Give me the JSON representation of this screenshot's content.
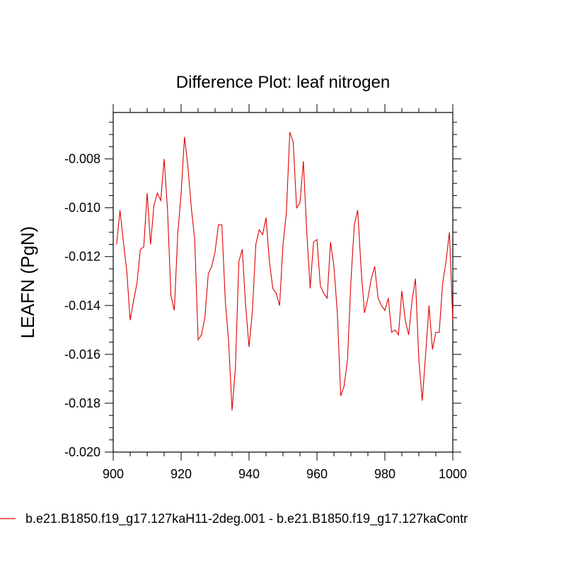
{
  "chart_data": {
    "type": "line",
    "title": "Difference Plot: leaf nitrogen",
    "xlabel": "",
    "ylabel": "LEAFN  (PgN)",
    "xlim": [
      900,
      1000
    ],
    "ylim": [
      -0.02,
      -0.0061
    ],
    "x_ticks": [
      900,
      920,
      940,
      960,
      980,
      1000
    ],
    "x_tick_labels": [
      "900",
      "920",
      "940",
      "960",
      "980",
      "1000"
    ],
    "y_ticks": [
      -0.02,
      -0.018,
      -0.016,
      -0.014,
      -0.012,
      -0.01,
      -0.008
    ],
    "y_tick_labels": [
      "-0.020",
      "-0.018",
      "-0.016",
      "-0.014",
      "-0.012",
      "-0.010",
      "-0.008"
    ],
    "grid": false,
    "legend_position": "bottom",
    "series": [
      {
        "name": "b.e21.B1850.f19_g17.127kaH11-2deg.001 - b.e21.B1850.f19_g17.127kaContr",
        "color": "#e00000",
        "x": [
          901,
          902,
          903,
          904,
          905,
          906,
          907,
          908,
          909,
          910,
          911,
          912,
          913,
          914,
          915,
          916,
          917,
          918,
          919,
          920,
          921,
          922,
          923,
          924,
          925,
          926,
          927,
          928,
          929,
          930,
          931,
          932,
          933,
          934,
          935,
          936,
          937,
          938,
          939,
          940,
          941,
          942,
          943,
          944,
          945,
          946,
          947,
          948,
          949,
          950,
          951,
          952,
          953,
          954,
          955,
          956,
          957,
          958,
          959,
          960,
          961,
          962,
          963,
          964,
          965,
          966,
          967,
          968,
          969,
          970,
          971,
          972,
          973,
          974,
          975,
          976,
          977,
          978,
          979,
          980,
          981,
          982,
          983,
          984,
          985,
          986,
          987,
          988,
          989,
          990,
          991,
          992,
          993,
          994,
          995,
          996,
          997,
          998,
          999,
          1000
        ],
        "values": [
          -0.0115,
          -0.0101,
          -0.0114,
          -0.0126,
          -0.0146,
          -0.0138,
          -0.0131,
          -0.0117,
          -0.0116,
          -0.0094,
          -0.0115,
          -0.0099,
          -0.0094,
          -0.0097,
          -0.008,
          -0.0101,
          -0.0136,
          -0.0142,
          -0.0111,
          -0.0094,
          -0.0071,
          -0.0083,
          -0.01,
          -0.0113,
          -0.0154,
          -0.0152,
          -0.0145,
          -0.0127,
          -0.0124,
          -0.0118,
          -0.0107,
          -0.0107,
          -0.0138,
          -0.0155,
          -0.0183,
          -0.0165,
          -0.0122,
          -0.0117,
          -0.014,
          -0.0157,
          -0.0142,
          -0.0115,
          -0.0109,
          -0.0111,
          -0.0104,
          -0.0122,
          -0.0133,
          -0.0135,
          -0.014,
          -0.0115,
          -0.0102,
          -0.0069,
          -0.0073,
          -0.01,
          -0.0098,
          -0.0081,
          -0.011,
          -0.0133,
          -0.0114,
          -0.0113,
          -0.0132,
          -0.0135,
          -0.0137,
          -0.0114,
          -0.0124,
          -0.0143,
          -0.0177,
          -0.0173,
          -0.0162,
          -0.013,
          -0.0107,
          -0.0101,
          -0.0125,
          -0.0143,
          -0.0137,
          -0.0129,
          -0.0124,
          -0.0137,
          -0.014,
          -0.0142,
          -0.0137,
          -0.0151,
          -0.015,
          -0.0152,
          -0.0134,
          -0.0146,
          -0.0152,
          -0.0138,
          -0.0129,
          -0.0162,
          -0.0179,
          -0.016,
          -0.014,
          -0.0158,
          -0.0151,
          -0.0151,
          -0.0131,
          -0.0122,
          -0.011,
          -0.0146
        ]
      }
    ]
  }
}
